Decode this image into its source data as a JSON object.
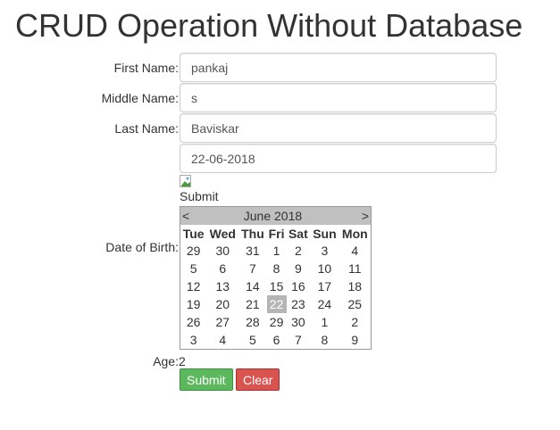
{
  "title": "CRUD Operation Without Database",
  "form": {
    "first_name_label": "First Name:",
    "first_name": "pankaj",
    "middle_name_label": "Middle Name:",
    "middle_name": "s",
    "last_name_label": "Last Name:",
    "last_name": "Baviskar",
    "dob_label": "Date of Birth:",
    "dob": "22-06-2018",
    "calendar_image_alt": "Submit",
    "age_label": "Age:",
    "age": "2",
    "submit_label": "Submit",
    "clear_label": "Clear"
  },
  "calendar": {
    "prev": "<",
    "next": ">",
    "month": "June 2018",
    "days": [
      "Tue",
      "Wed",
      "Thu",
      "Fri",
      "Sat",
      "Sun",
      "Mon"
    ],
    "weeks": [
      [
        "29",
        "30",
        "31",
        "1",
        "2",
        "3",
        "4"
      ],
      [
        "5",
        "6",
        "7",
        "8",
        "9",
        "10",
        "11"
      ],
      [
        "12",
        "13",
        "14",
        "15",
        "16",
        "17",
        "18"
      ],
      [
        "19",
        "20",
        "21",
        "22",
        "23",
        "24",
        "25"
      ],
      [
        "26",
        "27",
        "28",
        "29",
        "30",
        "1",
        "2"
      ],
      [
        "3",
        "4",
        "5",
        "6",
        "7",
        "8",
        "9"
      ]
    ],
    "selected": "22"
  },
  "colors": {
    "submit": "#5cb85c",
    "clear": "#d9534f"
  }
}
